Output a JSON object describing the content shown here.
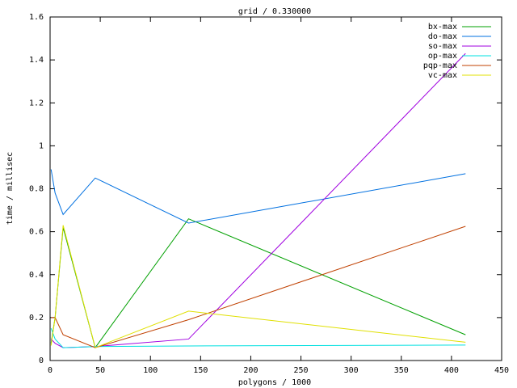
{
  "chart_data": {
    "type": "line",
    "title": "grid / 0.330000",
    "x_label": "polygons / 1000",
    "y_label": "time / millisec",
    "x": [
      1,
      5,
      13,
      45,
      138,
      414
    ],
    "series": [
      {
        "name": "bx-max",
        "color": "#00a000",
        "values": [
          0.08,
          0.2,
          0.62,
          0.06,
          0.66,
          0.12
        ]
      },
      {
        "name": "do-max",
        "color": "#0070e0",
        "values": [
          0.89,
          0.78,
          0.68,
          0.85,
          0.64,
          0.87
        ]
      },
      {
        "name": "so-max",
        "color": "#a000e0",
        "values": [
          0.1,
          0.08,
          0.06,
          0.065,
          0.1,
          1.43
        ]
      },
      {
        "name": "op-max",
        "color": "#00e0e0",
        "values": [
          0.15,
          0.1,
          0.06,
          0.065,
          0.068,
          0.072
        ]
      },
      {
        "name": "pqp-max",
        "color": "#c04000",
        "values": [
          0.2,
          0.2,
          0.12,
          0.06,
          0.19,
          0.625
        ]
      },
      {
        "name": "vc-max",
        "color": "#e0e000",
        "values": [
          0.07,
          0.2,
          0.63,
          0.06,
          0.23,
          0.085
        ]
      }
    ],
    "xlim": [
      0,
      450
    ],
    "xticks": [
      0,
      50,
      100,
      150,
      200,
      250,
      300,
      350,
      400,
      450
    ],
    "ylim": [
      0,
      1.6
    ],
    "yticks": [
      0,
      0.2,
      0.4,
      0.6,
      0.8,
      1,
      1.2,
      1.4,
      1.6
    ],
    "legend": "top-right"
  }
}
